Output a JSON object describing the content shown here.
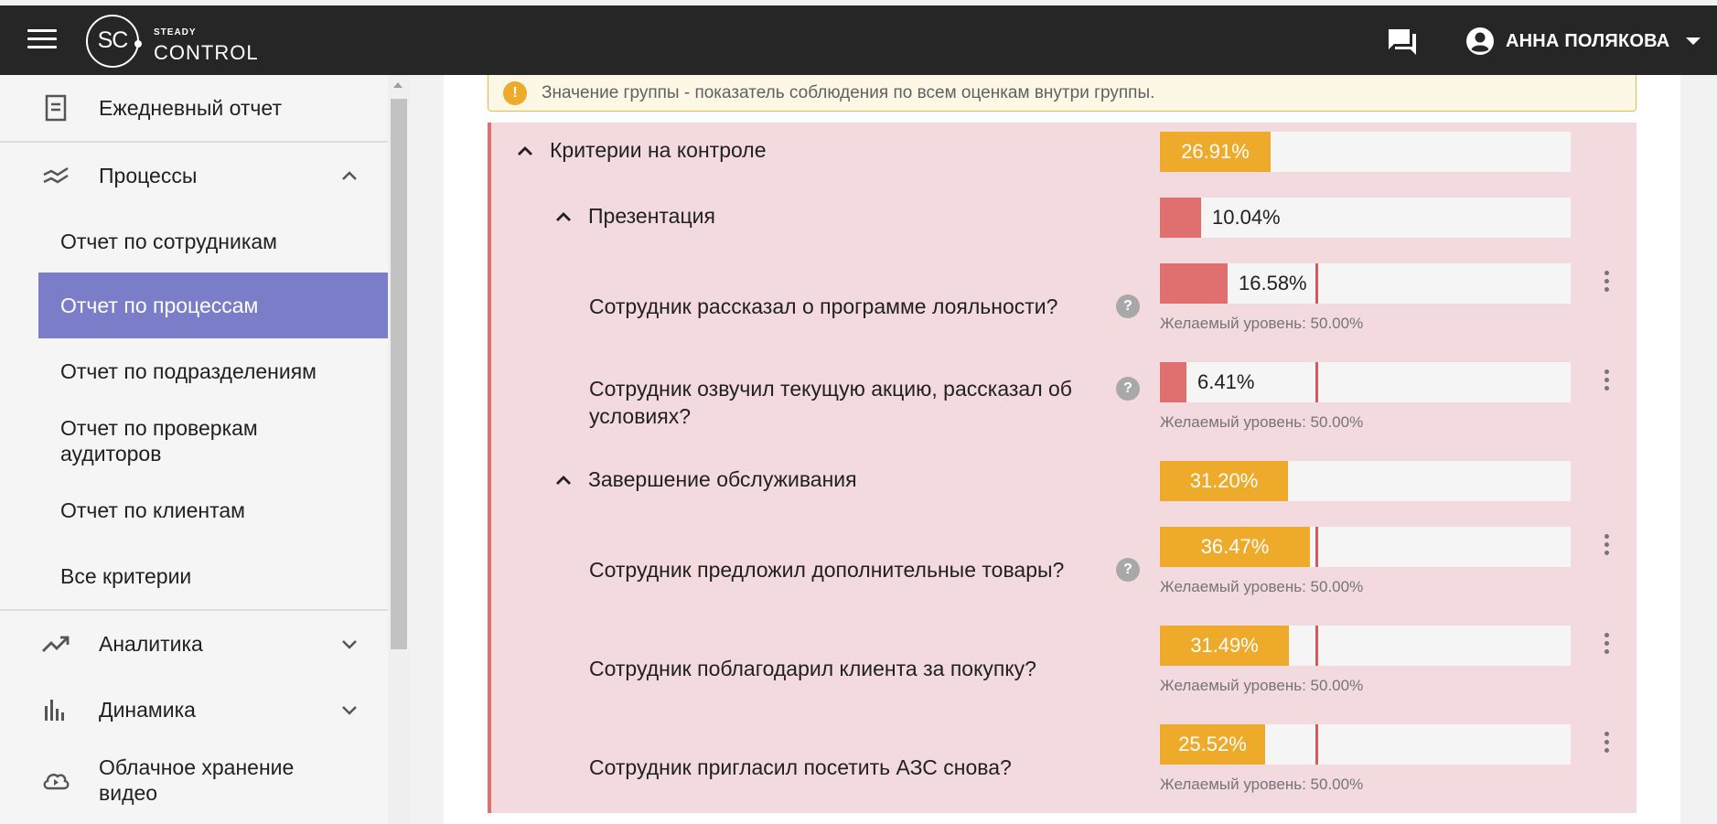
{
  "header": {
    "logo_mark": "SC",
    "logo_top": "STEADY",
    "logo_bottom": "CONTROL",
    "user_name": "АННА ПОЛЯКОВА"
  },
  "sidebar": {
    "items": [
      {
        "label": "Ежедневный отчет",
        "icon": "document-icon"
      },
      {
        "label": "Процессы",
        "icon": "processes-icon",
        "expanded": true
      },
      {
        "label": "Аналитика",
        "icon": "trending-up-icon",
        "expanded": false
      },
      {
        "label": "Динамика",
        "icon": "bar-chart-icon",
        "expanded": false
      },
      {
        "label": "Облачное хранение видео",
        "icon": "cloud-video-icon"
      }
    ],
    "sub_items": [
      {
        "label": "Отчет по сотрудникам",
        "active": false
      },
      {
        "label": "Отчет по процессам",
        "active": true
      },
      {
        "label": "Отчет по подразделениям",
        "active": false
      },
      {
        "label": "Отчет по проверкам аудиторов",
        "active": false
      },
      {
        "label": "Отчет по клиентам",
        "active": false
      },
      {
        "label": "Все критерии",
        "active": false
      }
    ]
  },
  "info": {
    "text": "Значение группы - показатель соблюдения по всем оценкам внутри группы."
  },
  "report": {
    "group": {
      "title": "Критерии на контроле",
      "value": "26.91%",
      "fraction": 0.2691,
      "color": "#eeaa2a"
    },
    "sections": [
      {
        "title": "Презентация",
        "value": "10.04%",
        "fraction": 0.1004,
        "color": "#e07070",
        "criteria": [
          {
            "title": "Сотрудник рассказал о программе лояльности?",
            "value": "16.58%",
            "fraction": 0.1658,
            "color": "#e07070",
            "target": "Желаемый уровень: 50.00%",
            "target_fraction": 0.5,
            "help": true
          },
          {
            "title": "Сотрудник озвучил текущую акцию, рассказал об условиях?",
            "value": "6.41%",
            "fraction": 0.0641,
            "color": "#e07070",
            "target": "Желаемый уровень: 50.00%",
            "target_fraction": 0.5,
            "help": true
          }
        ]
      },
      {
        "title": "Завершение обслуживания",
        "value": "31.20%",
        "fraction": 0.312,
        "color": "#eeaa2a",
        "criteria": [
          {
            "title": "Сотрудник предложил дополнительные товары?",
            "value": "36.47%",
            "fraction": 0.3647,
            "color": "#eeaa2a",
            "target": "Желаемый уровень: 50.00%",
            "target_fraction": 0.5,
            "help": true
          },
          {
            "title": "Сотрудник поблагодарил клиента за покупку?",
            "value": "31.49%",
            "fraction": 0.3149,
            "color": "#eeaa2a",
            "target": "Желаемый уровень: 50.00%",
            "target_fraction": 0.5,
            "help": false
          },
          {
            "title": "Сотрудник пригласил посетить АЗС снова?",
            "value": "25.52%",
            "fraction": 0.2552,
            "color": "#eeaa2a",
            "target": "Желаемый уровень: 50.00%",
            "target_fraction": 0.5,
            "help": false
          }
        ]
      }
    ]
  },
  "help_glyph": "?",
  "info_glyph": "!"
}
